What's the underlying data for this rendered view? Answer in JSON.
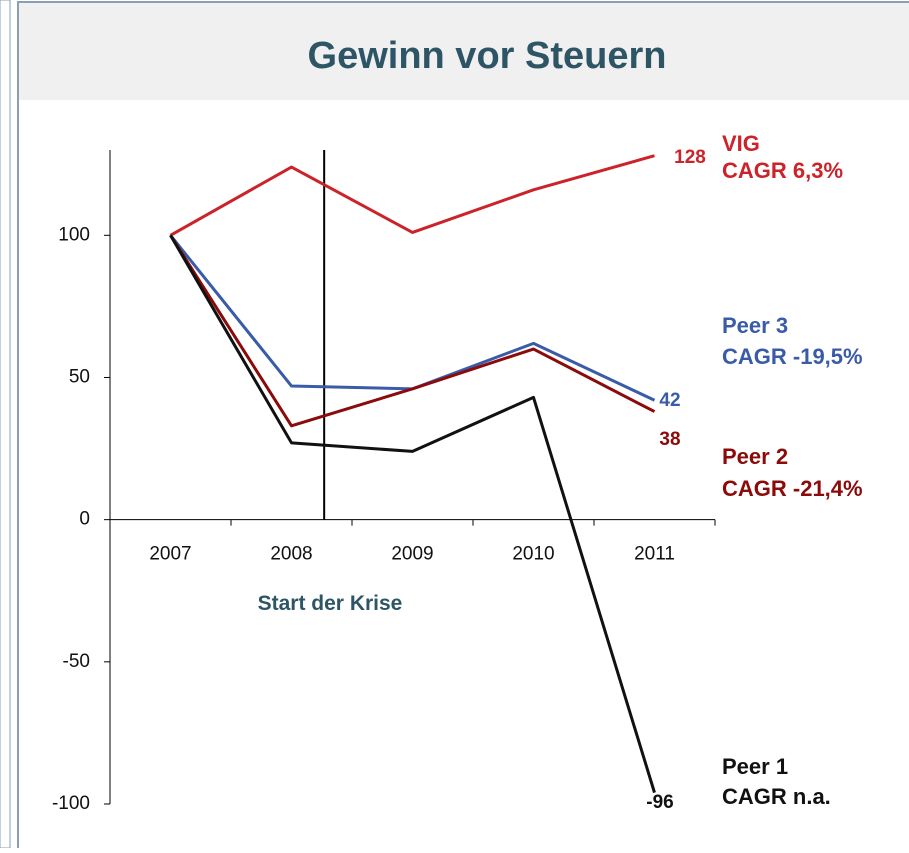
{
  "chart_data": {
    "type": "line",
    "title": "Gewinn vor Steuern",
    "categories": [
      "2007",
      "2008",
      "2009",
      "2010",
      "2011"
    ],
    "series": [
      {
        "name": "VIG",
        "cagr": "CAGR 6,3%",
        "color": "#cc2229",
        "values": [
          100,
          124,
          101,
          116,
          128
        ]
      },
      {
        "name": "Peer 3",
        "cagr": "CAGR -19,5%",
        "color": "#3a5ba8",
        "values": [
          100,
          47,
          46,
          62,
          42
        ]
      },
      {
        "name": "Peer 2",
        "cagr": "CAGR -21,4%",
        "color": "#8b0a0a",
        "values": [
          100,
          33,
          46,
          60,
          38
        ]
      },
      {
        "name": "Peer 1",
        "cagr": "CAGR n.a.",
        "color": "#111111",
        "values": [
          100,
          27,
          24,
          43,
          -96
        ]
      }
    ],
    "annotation": "Start der Krise",
    "ylim": [
      -100,
      130
    ],
    "yticks": [
      -100,
      -50,
      0,
      50,
      100
    ],
    "grid": false
  }
}
